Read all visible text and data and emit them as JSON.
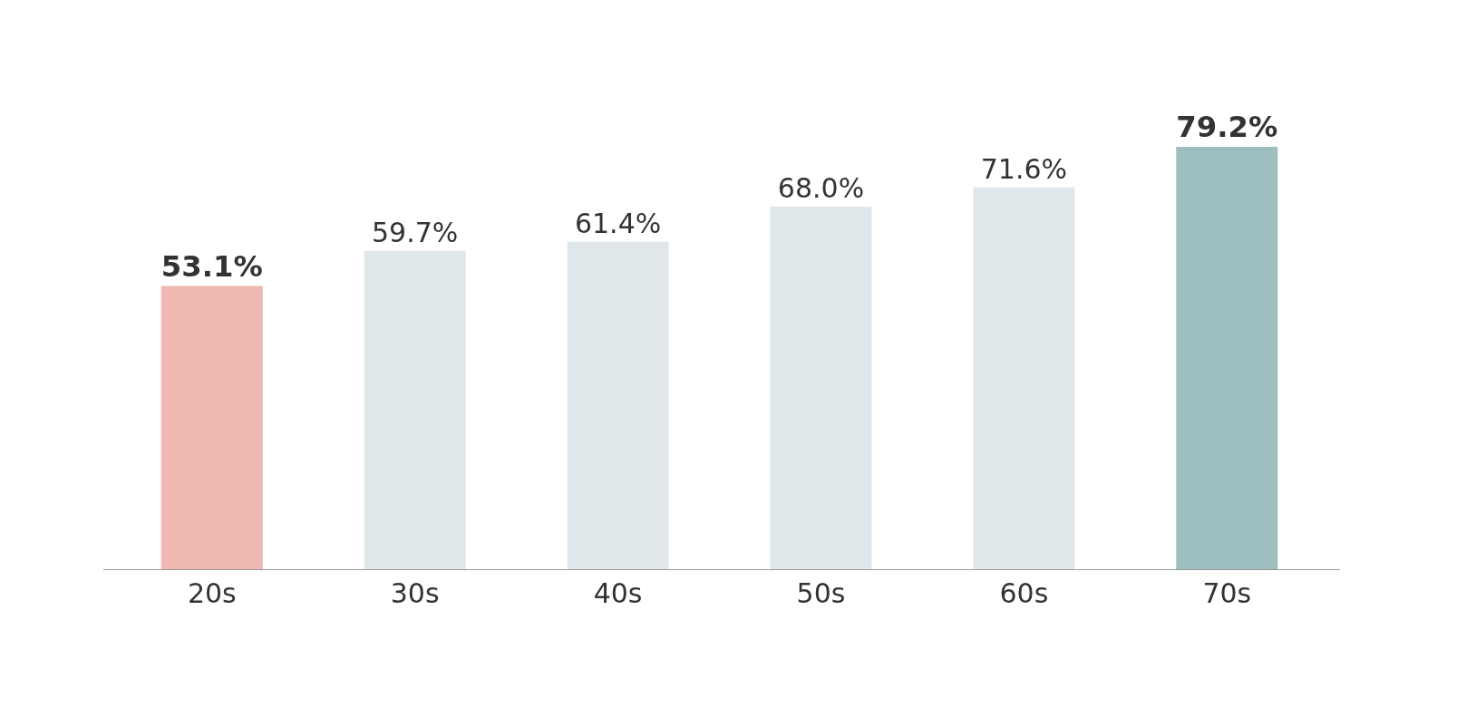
{
  "chart_data": {
    "type": "bar",
    "categories": [
      "20s",
      "30s",
      "40s",
      "50s",
      "60s",
      "70s"
    ],
    "values": [
      53.1,
      59.7,
      61.4,
      68.0,
      71.6,
      79.2
    ],
    "colors": [
      "#efb8b0",
      "#dfe7ea",
      "#dfe7ea",
      "#dfe7ea",
      "#dfe7ea",
      "#9dbfbf"
    ],
    "value_labels": [
      "53.1%",
      "59.7%",
      "61.4%",
      "68.0%",
      "71.6%",
      "79.2%"
    ],
    "legend": false
  }
}
